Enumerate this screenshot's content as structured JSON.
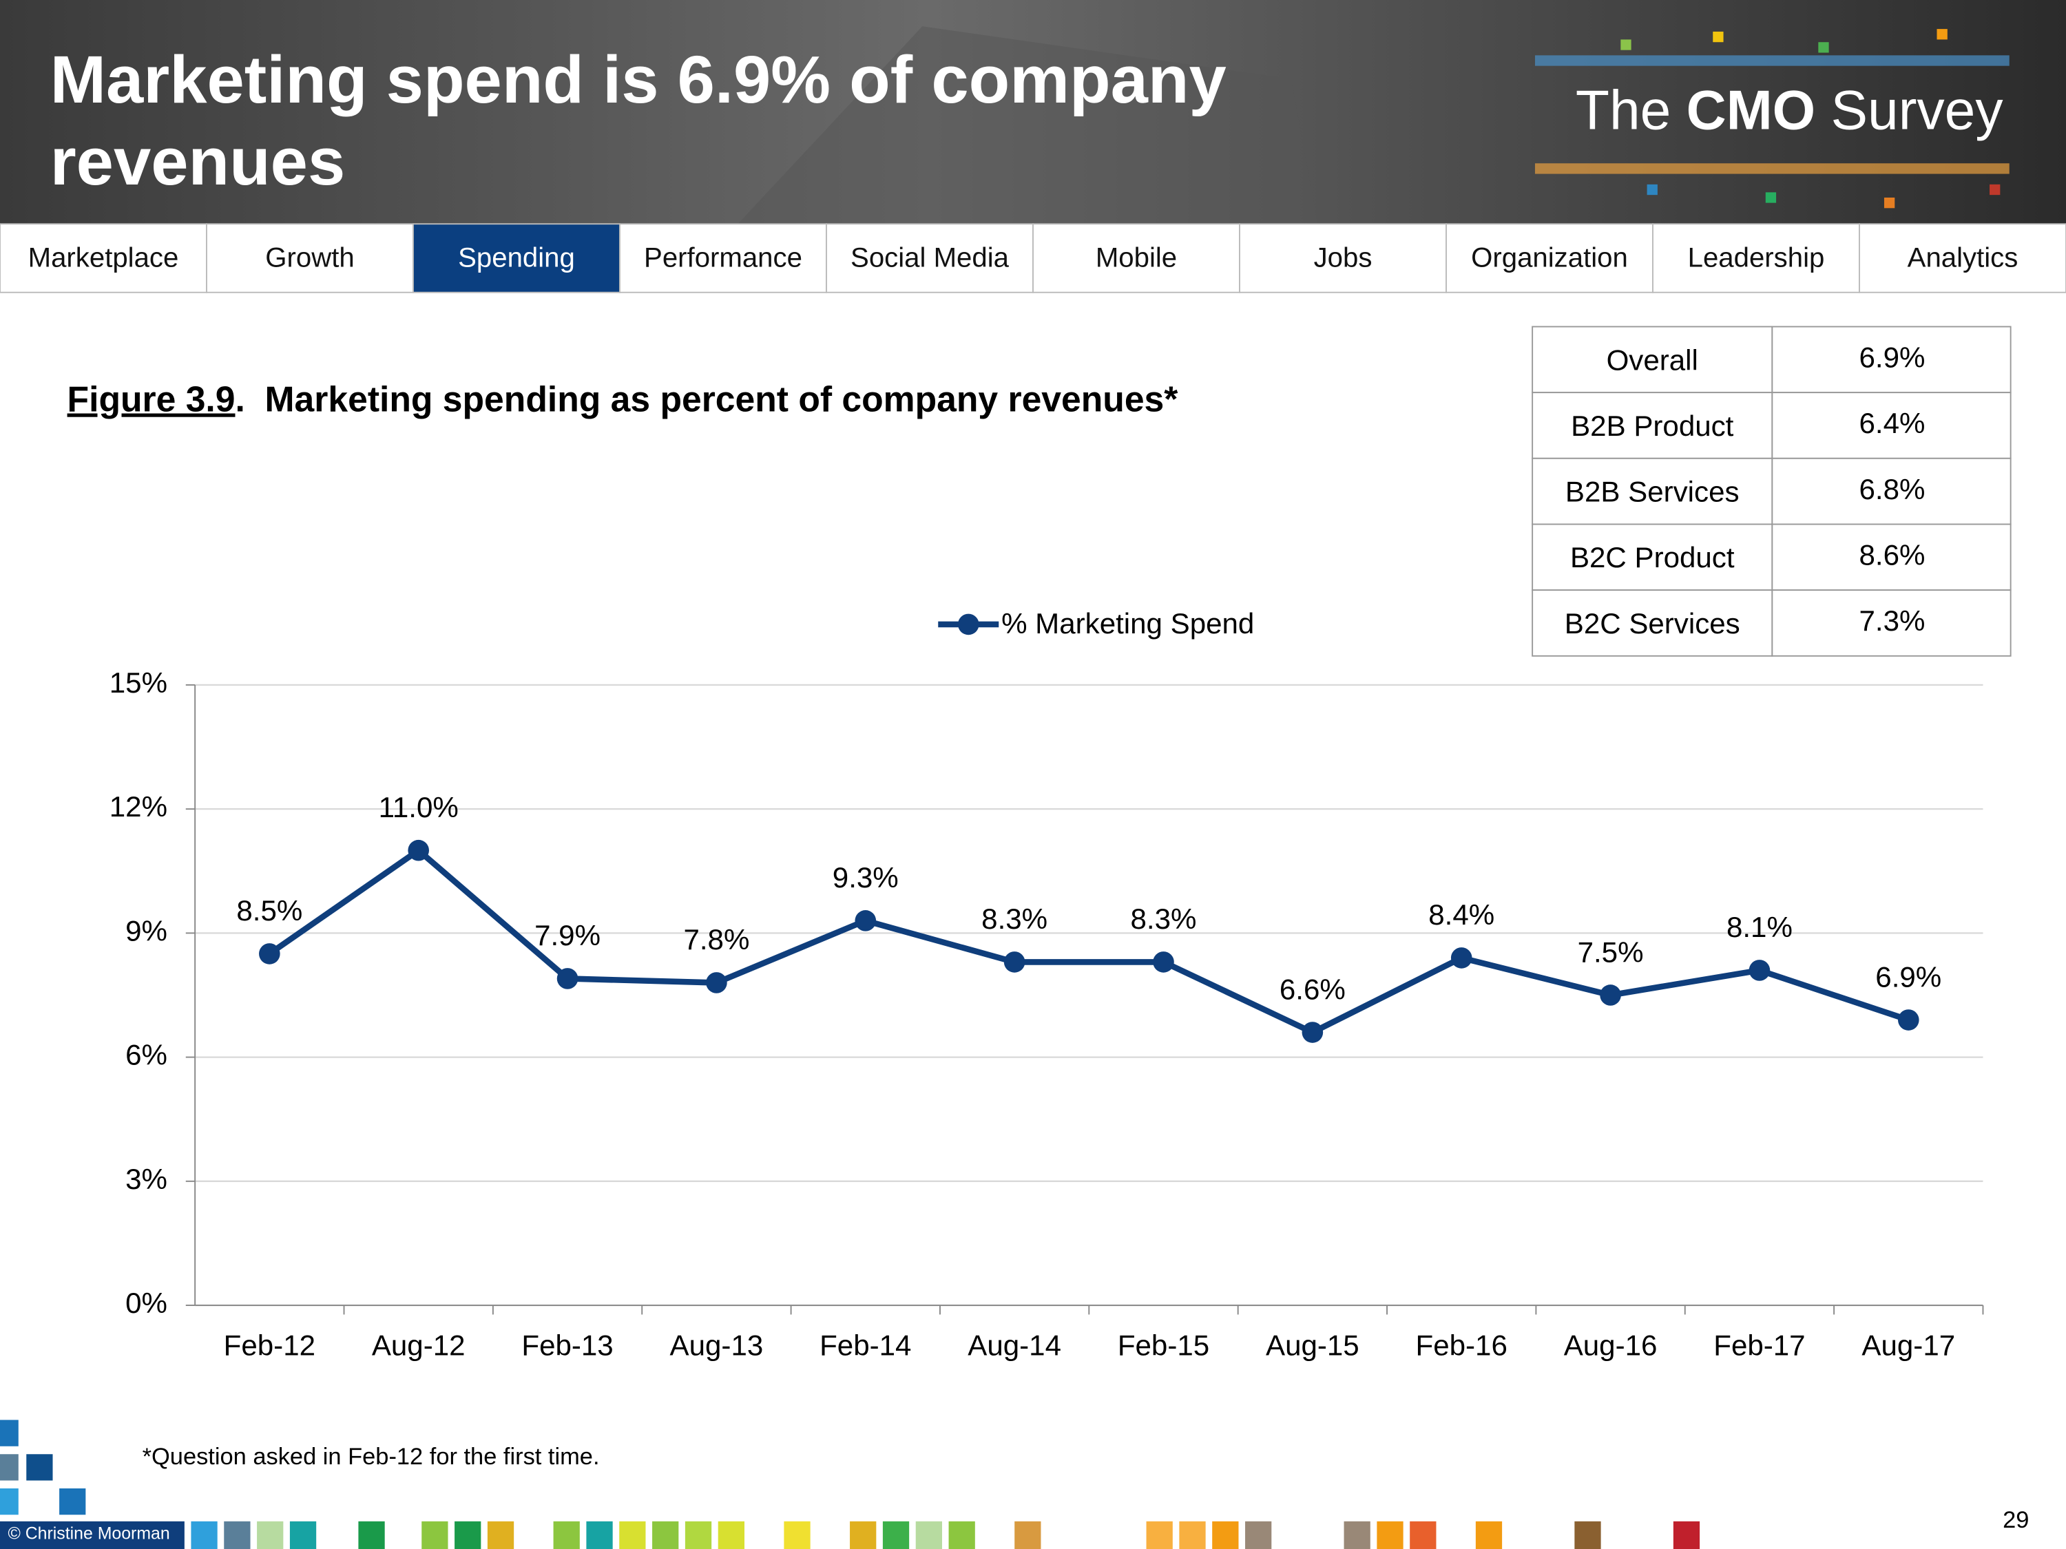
{
  "header": {
    "title": "Marketing spend is 6.9% of company revenues",
    "logo": {
      "pre": "The ",
      "bold": "CMO",
      "post": " Survey"
    }
  },
  "nav": {
    "tabs": [
      "Marketplace",
      "Growth",
      "Spending",
      "Performance",
      "Social Media",
      "Mobile",
      "Jobs",
      "Organization",
      "Leadership",
      "Analytics"
    ],
    "active": 2
  },
  "caption": {
    "label": "Figure 3.9",
    "text": ".  Marketing spending as percent of company revenues*"
  },
  "table": {
    "rows": [
      [
        "Overall",
        "6.9%"
      ],
      [
        "B2B Product",
        "6.4%"
      ],
      [
        "B2B Services",
        "6.8%"
      ],
      [
        "B2C Product",
        "8.6%"
      ],
      [
        "B2C Services",
        "7.3%"
      ]
    ]
  },
  "chart_data": {
    "type": "line",
    "categories": [
      "Feb-12",
      "Aug-12",
      "Feb-13",
      "Aug-13",
      "Feb-14",
      "Aug-14",
      "Feb-15",
      "Aug-15",
      "Feb-16",
      "Aug-16",
      "Feb-17",
      "Aug-17"
    ],
    "series": [
      {
        "name": "% Marketing Spend",
        "color": "#0f3e7c",
        "values": [
          8.5,
          11.0,
          7.9,
          7.8,
          9.3,
          8.3,
          8.3,
          6.6,
          8.4,
          7.5,
          8.1,
          6.9
        ],
        "value_labels": [
          "8.5%",
          "11.0%",
          "7.9%",
          "7.8%",
          "9.3%",
          "8.3%",
          "8.3%",
          "6.6%",
          "8.4%",
          "7.5%",
          "8.1%",
          "6.9%"
        ]
      }
    ],
    "ylim": [
      0,
      15
    ],
    "yticks": [
      {
        "value": 0,
        "label": "0%"
      },
      {
        "value": 3,
        "label": "3%"
      },
      {
        "value": 6,
        "label": "6%"
      },
      {
        "value": 9,
        "label": "9%"
      },
      {
        "value": 12,
        "label": "12%"
      },
      {
        "value": 15,
        "label": "15%"
      }
    ],
    "grid": true,
    "legend": "top"
  },
  "footnote": "*Question asked in Feb-12 for the first time.",
  "copyright": "© Christine Moorman",
  "page_number": "29"
}
